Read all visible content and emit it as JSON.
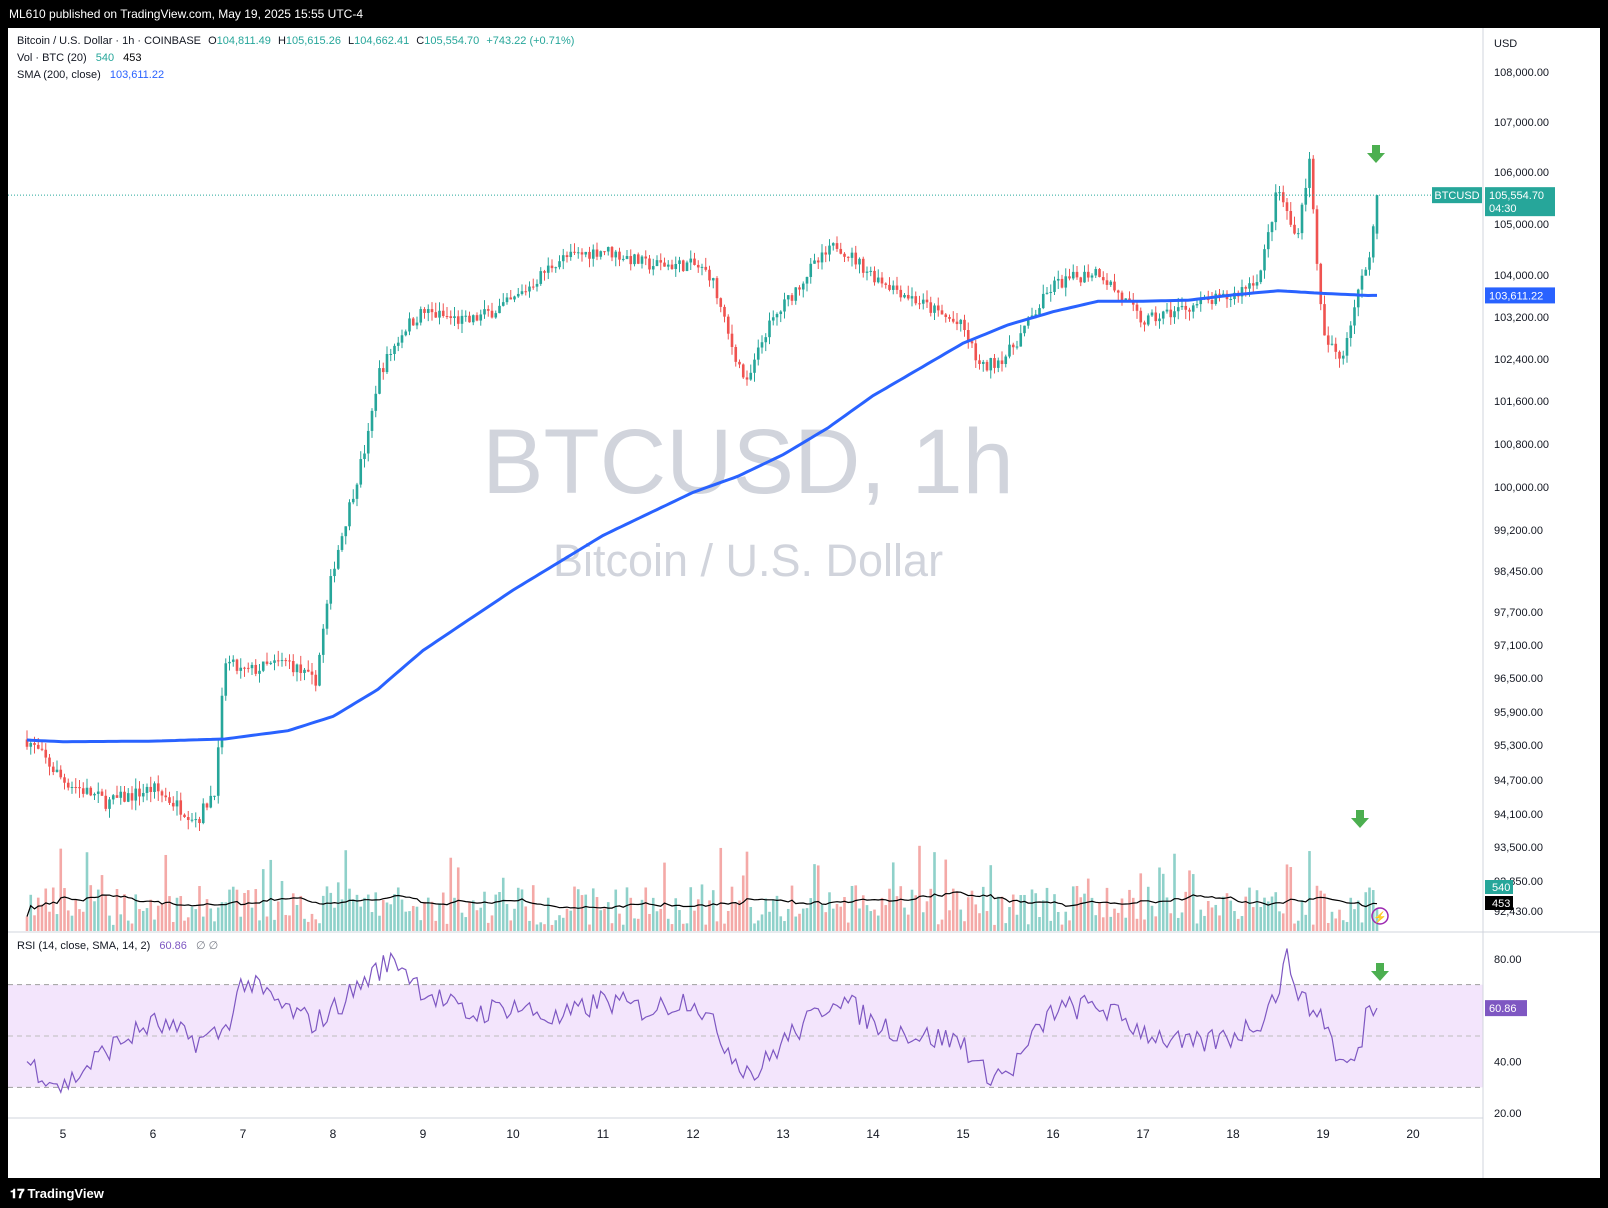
{
  "header": {
    "publish_line": "ML610 published on TradingView.com, May 19, 2025 15:55 UTC-4"
  },
  "footer": {
    "brand": "TradingView",
    "brand_icon": "tradingview-logo-icon"
  },
  "colors": {
    "up": "#26a69a",
    "down": "#ef5350",
    "sma": "#2962ff",
    "rsi": "#7e57c2",
    "rsi_band": "#f3e5fc",
    "arrow": "#4caf50"
  },
  "legend": {
    "line1": {
      "prefix": "Bitcoin / U.S. Dollar · 1h · COINBASE",
      "o_label": "O",
      "o": "104,811.49",
      "h_label": "H",
      "h": "105,615.26",
      "l_label": "L",
      "l": "104,662.41",
      "c_label": "C",
      "c": "105,554.70",
      "chg": "+743.22 (+0.71%)"
    },
    "line2": {
      "label": "Vol · BTC (20)",
      "v1": "540",
      "v2": "453"
    },
    "line3": {
      "label": "SMA (200, close)",
      "value": "103,611.22"
    },
    "rsi": {
      "label": "RSI (14, close, SMA, 14, 2)",
      "value": "60.86",
      "extra": "∅  ∅"
    }
  },
  "watermark": {
    "symbol": "BTCUSD, 1h",
    "name": "Bitcoin / U.S. Dollar"
  },
  "price_axis": {
    "currency": "USD",
    "ticks": [
      "108,000.00",
      "107,000.00",
      "106,000.00",
      "105,000.00",
      "104,000.00",
      "103,200.00",
      "102,400.00",
      "101,600.00",
      "100,800.00",
      "100,000.00",
      "99,200.00",
      "98,450.00",
      "97,700.00",
      "97,100.00",
      "96,500.00",
      "95,900.00",
      "95,300.00",
      "94,700.00",
      "94,100.00",
      "93,500.00",
      "92,850.00",
      "92,430.00"
    ],
    "last_symbol": "BTCUSD",
    "last_price": "105,554.70",
    "countdown": "04:30",
    "sma_label": "103,611.22",
    "vol_label_1": "540",
    "vol_label_2": "453"
  },
  "rsi_axis": {
    "ticks": [
      "80.00",
      "40.00",
      "20.00"
    ],
    "value_label": "60.86"
  },
  "time_axis": {
    "ticks": [
      "5",
      "6",
      "7",
      "8",
      "9",
      "10",
      "11",
      "12",
      "13",
      "14",
      "15",
      "16",
      "17",
      "18",
      "19",
      "20"
    ]
  },
  "chart_data": {
    "type": "candlestick",
    "symbol": "BTCUSD",
    "interval": "1h",
    "x_range": [
      "May 4",
      "May 20"
    ],
    "price_range": [
      92430,
      108000
    ],
    "last": {
      "open": 104811.49,
      "high": 105615.26,
      "low": 104662.41,
      "close": 105554.7,
      "change": 743.22,
      "change_pct": 0.71
    },
    "price_path": {
      "day": [
        4.6,
        5.0,
        5.5,
        6.0,
        6.5,
        6.7,
        6.8,
        7.0,
        7.5,
        7.8,
        8.0,
        8.4,
        8.5,
        8.8,
        9.0,
        9.5,
        10.0,
        10.5,
        11.0,
        11.5,
        12.0,
        12.2,
        12.4,
        12.6,
        12.8,
        13.0,
        13.3,
        13.6,
        14.0,
        14.5,
        15.0,
        15.2,
        15.5,
        16.0,
        16.5,
        17.0,
        17.5,
        18.0,
        18.3,
        18.5,
        18.7,
        18.85,
        19.0,
        19.2,
        19.35,
        19.5,
        19.62
      ],
      "price": [
        95400,
        94700,
        94300,
        94550,
        94000,
        94600,
        96800,
        96600,
        96800,
        96400,
        98500,
        101000,
        102100,
        103000,
        103300,
        103100,
        103500,
        104300,
        104500,
        104200,
        104200,
        104000,
        102800,
        101900,
        102900,
        103400,
        104100,
        104600,
        104000,
        103500,
        103000,
        102200,
        102500,
        103800,
        104100,
        103100,
        103400,
        103600,
        104000,
        105700,
        104700,
        106200,
        102800,
        102400,
        103400,
        104300,
        105554.7
      ]
    },
    "sma_200": {
      "day": [
        4.6,
        5.0,
        6.0,
        6.8,
        7.5,
        8.0,
        8.5,
        9.0,
        10.0,
        11.0,
        12.0,
        12.5,
        13.0,
        13.5,
        14.0,
        14.5,
        15.0,
        15.5,
        16.0,
        16.5,
        17.0,
        17.5,
        18.0,
        18.5,
        19.0,
        19.5,
        19.62
      ],
      "value": [
        95390,
        95360,
        95370,
        95410,
        95560,
        95820,
        96300,
        97000,
        98100,
        99100,
        99900,
        100200,
        100600,
        101100,
        101700,
        102200,
        102700,
        103050,
        103300,
        103500,
        103500,
        103520,
        103620,
        103700,
        103650,
        103610,
        103611.22
      ]
    },
    "volume": {
      "last": 540,
      "sma_20": 453
    },
    "rsi": {
      "period": 14,
      "last": 60.86,
      "bands": [
        70,
        50,
        30
      ],
      "axis_range": [
        20,
        90
      ],
      "day": [
        4.6,
        5.0,
        5.5,
        6.0,
        6.5,
        6.8,
        7.0,
        7.5,
        7.8,
        8.0,
        8.3,
        8.5,
        8.7,
        9.0,
        9.5,
        10.0,
        10.5,
        11.0,
        11.5,
        12.0,
        12.5,
        12.7,
        13.0,
        13.3,
        13.6,
        14.0,
        14.5,
        15.0,
        15.2,
        15.5,
        16.0,
        16.5,
        17.0,
        17.5,
        18.0,
        18.3,
        18.5,
        18.6,
        18.8,
        19.0,
        19.2,
        19.4,
        19.5,
        19.62
      ],
      "value": [
        40,
        30,
        45,
        55,
        48,
        52,
        72,
        60,
        55,
        60,
        70,
        76,
        80,
        68,
        58,
        62,
        56,
        64,
        60,
        65,
        40,
        35,
        48,
        56,
        66,
        55,
        50,
        48,
        36,
        35,
        60,
        62,
        52,
        46,
        50,
        56,
        68,
        80,
        62,
        58,
        38,
        42,
        64,
        60.86
      ]
    }
  }
}
